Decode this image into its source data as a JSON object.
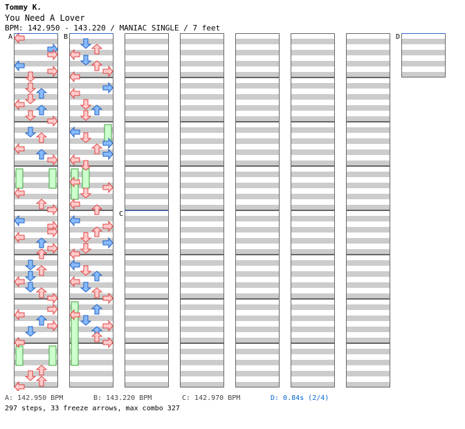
{
  "header": {
    "artist": "Tommy K.",
    "song": "You Need A Lover",
    "info": "BPM: 142.950 - 143.220 / MANIAC SINGLE / 7 feet"
  },
  "colors": {
    "red_fill": "#ffcccc",
    "red_stroke": "#e04040",
    "blue_fill": "#88bbff",
    "blue_stroke": "#2060c0",
    "freeze_fill": "#ccffcc",
    "freeze_stroke": "#40a040",
    "stripe": "#cccccc",
    "marker_line": "#3366cc",
    "delay_text": "#0066cc"
  },
  "markers": [
    {
      "label": "A",
      "col": 0,
      "measure": 0
    },
    {
      "label": "B",
      "col": 1,
      "measure": 0
    },
    {
      "label": "C",
      "col": 2,
      "measure": 4
    },
    {
      "label": "D",
      "col": 7,
      "measure": 0
    }
  ],
  "chart_data": {
    "type": "step-chart",
    "columns_measures": [
      8,
      8,
      8,
      8,
      8,
      8,
      8,
      1
    ],
    "arrow_key": "L=left D=down U=up R=right; B=blue(8th) R=red(4th)",
    "arrows": [
      [
        0,
        0,
        0,
        "L",
        "R"
      ],
      [
        0,
        0,
        4,
        "R",
        "B"
      ],
      [
        0,
        0,
        6,
        "R",
        "R"
      ],
      [
        0,
        0,
        10,
        "L",
        "B"
      ],
      [
        0,
        0,
        12,
        "R",
        "R"
      ],
      [
        0,
        0,
        14,
        "D",
        "R"
      ],
      [
        0,
        1,
        2,
        "D",
        "R"
      ],
      [
        0,
        1,
        4,
        "U",
        "B"
      ],
      [
        0,
        1,
        6,
        "D",
        "R"
      ],
      [
        0,
        1,
        8,
        "L",
        "R"
      ],
      [
        0,
        1,
        10,
        "U",
        "B"
      ],
      [
        0,
        1,
        12,
        "D",
        "R"
      ],
      [
        0,
        1,
        14,
        "R",
        "R"
      ],
      [
        0,
        2,
        2,
        "D",
        "B"
      ],
      [
        0,
        2,
        4,
        "U",
        "R"
      ],
      [
        0,
        2,
        8,
        "L",
        "R"
      ],
      [
        0,
        2,
        10,
        "U",
        "B"
      ],
      [
        0,
        2,
        12,
        "R",
        "R"
      ],
      [
        0,
        3,
        8,
        "L",
        "R"
      ],
      [
        0,
        3,
        12,
        "U",
        "R"
      ],
      [
        0,
        3,
        14,
        "R",
        "R"
      ],
      [
        0,
        4,
        2,
        "L",
        "B"
      ],
      [
        0,
        4,
        4,
        "R",
        "R"
      ],
      [
        0,
        4,
        6,
        "R",
        "R"
      ],
      [
        0,
        4,
        8,
        "L",
        "R"
      ],
      [
        0,
        4,
        10,
        "U",
        "B"
      ],
      [
        0,
        4,
        12,
        "R",
        "R"
      ],
      [
        0,
        4,
        14,
        "U",
        "R"
      ],
      [
        0,
        5,
        2,
        "D",
        "B"
      ],
      [
        0,
        5,
        4,
        "U",
        "R"
      ],
      [
        0,
        5,
        6,
        "D",
        "B"
      ],
      [
        0,
        5,
        8,
        "L",
        "R"
      ],
      [
        0,
        5,
        10,
        "D",
        "B"
      ],
      [
        0,
        5,
        12,
        "U",
        "R"
      ],
      [
        0,
        5,
        14,
        "R",
        "R"
      ],
      [
        0,
        6,
        2,
        "R",
        "R"
      ],
      [
        0,
        6,
        4,
        "L",
        "R"
      ],
      [
        0,
        6,
        6,
        "U",
        "B"
      ],
      [
        0,
        6,
        8,
        "R",
        "R"
      ],
      [
        0,
        6,
        10,
        "D",
        "B"
      ],
      [
        0,
        6,
        14,
        "L",
        "R"
      ],
      [
        0,
        7,
        8,
        "U",
        "R"
      ],
      [
        0,
        7,
        10,
        "D",
        "R"
      ],
      [
        0,
        7,
        12,
        "U",
        "R"
      ],
      [
        0,
        7,
        14,
        "L",
        "R"
      ],
      [
        1,
        0,
        2,
        "D",
        "B"
      ],
      [
        1,
        0,
        4,
        "U",
        "R"
      ],
      [
        1,
        0,
        6,
        "L",
        "R"
      ],
      [
        1,
        0,
        8,
        "D",
        "B"
      ],
      [
        1,
        0,
        10,
        "U",
        "R"
      ],
      [
        1,
        0,
        12,
        "R",
        "R"
      ],
      [
        1,
        0,
        14,
        "L",
        "R"
      ],
      [
        1,
        1,
        2,
        "R",
        "B"
      ],
      [
        1,
        1,
        4,
        "L",
        "R"
      ],
      [
        1,
        1,
        8,
        "D",
        "R"
      ],
      [
        1,
        1,
        10,
        "U",
        "B"
      ],
      [
        1,
        1,
        12,
        "D",
        "R"
      ],
      [
        1,
        2,
        2,
        "L",
        "B"
      ],
      [
        1,
        2,
        4,
        "D",
        "R"
      ],
      [
        1,
        2,
        6,
        "R",
        "B"
      ],
      [
        1,
        2,
        8,
        "U",
        "R"
      ],
      [
        1,
        2,
        10,
        "R",
        "B"
      ],
      [
        1,
        2,
        12,
        "L",
        "R"
      ],
      [
        1,
        2,
        14,
        "D",
        "R"
      ],
      [
        1,
        3,
        4,
        "L",
        "R"
      ],
      [
        1,
        3,
        6,
        "R",
        "R"
      ],
      [
        1,
        3,
        8,
        "D",
        "R"
      ],
      [
        1,
        3,
        12,
        "L",
        "R"
      ],
      [
        1,
        3,
        14,
        "U",
        "R"
      ],
      [
        1,
        4,
        2,
        "L",
        "B"
      ],
      [
        1,
        4,
        4,
        "R",
        "R"
      ],
      [
        1,
        4,
        6,
        "U",
        "R"
      ],
      [
        1,
        4,
        8,
        "D",
        "R"
      ],
      [
        1,
        4,
        10,
        "R",
        "B"
      ],
      [
        1,
        4,
        12,
        "D",
        "R"
      ],
      [
        1,
        4,
        14,
        "L",
        "R"
      ],
      [
        1,
        5,
        2,
        "L",
        "B"
      ],
      [
        1,
        5,
        4,
        "D",
        "R"
      ],
      [
        1,
        5,
        6,
        "U",
        "B"
      ],
      [
        1,
        5,
        8,
        "L",
        "R"
      ],
      [
        1,
        5,
        10,
        "D",
        "B"
      ],
      [
        1,
        5,
        12,
        "U",
        "R"
      ],
      [
        1,
        5,
        14,
        "R",
        "R"
      ],
      [
        1,
        6,
        2,
        "U",
        "B"
      ],
      [
        1,
        6,
        4,
        "L",
        "R"
      ],
      [
        1,
        6,
        6,
        "D",
        "B"
      ],
      [
        1,
        6,
        8,
        "R",
        "R"
      ],
      [
        1,
        6,
        10,
        "U",
        "B"
      ],
      [
        1,
        6,
        12,
        "U",
        "R"
      ],
      [
        1,
        6,
        14,
        "R",
        "R"
      ]
    ],
    "freezes": [
      [
        0,
        3,
        0,
        2,
        0
      ],
      [
        0,
        3,
        3,
        2,
        0
      ],
      [
        0,
        7,
        0,
        2,
        0
      ],
      [
        0,
        7,
        3,
        2,
        0
      ],
      [
        1,
        3,
        1,
        2,
        0
      ],
      [
        1,
        3,
        0,
        6,
        0
      ],
      [
        1,
        6,
        0,
        18,
        0
      ],
      [
        1,
        2,
        3,
        2,
        0
      ]
    ],
    "footer": {
      "bpm_a": "A: 142.950 BPM",
      "bpm_b": "B: 143.220 BPM",
      "bpm_c": "C: 142.970 BPM",
      "delay_d": "D: 0.84s (2/4)",
      "stats": "297 steps, 33 freeze arrows, max combo 327"
    }
  }
}
